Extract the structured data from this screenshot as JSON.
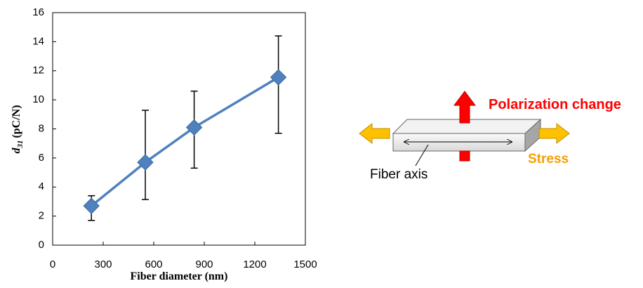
{
  "chart_data": {
    "type": "line",
    "xlabel": "Fiber diameter (nm)",
    "ylabel_symbol": "d",
    "ylabel_subscript": "31",
    "ylabel_unit": "(pC/N)",
    "x": [
      230,
      550,
      840,
      1340
    ],
    "series": [
      {
        "color": "#4f81bd",
        "values": [
          2.7,
          5.7,
          8.1,
          11.55
        ],
        "error_plus": [
          0.7,
          3.58,
          2.5,
          2.85
        ],
        "error_minus": [
          1.0,
          2.56,
          2.8,
          3.85
        ]
      }
    ],
    "xlim": [
      0,
      1500
    ],
    "xticks": [
      0,
      300,
      600,
      900,
      1200,
      1500
    ],
    "ylim": [
      0,
      16
    ],
    "yticks": [
      0,
      2,
      4,
      6,
      8,
      10,
      12,
      14,
      16
    ]
  },
  "diagram": {
    "polarization": "Polarization change",
    "stress": "Stress",
    "fiber_axis": "Fiber axis"
  }
}
